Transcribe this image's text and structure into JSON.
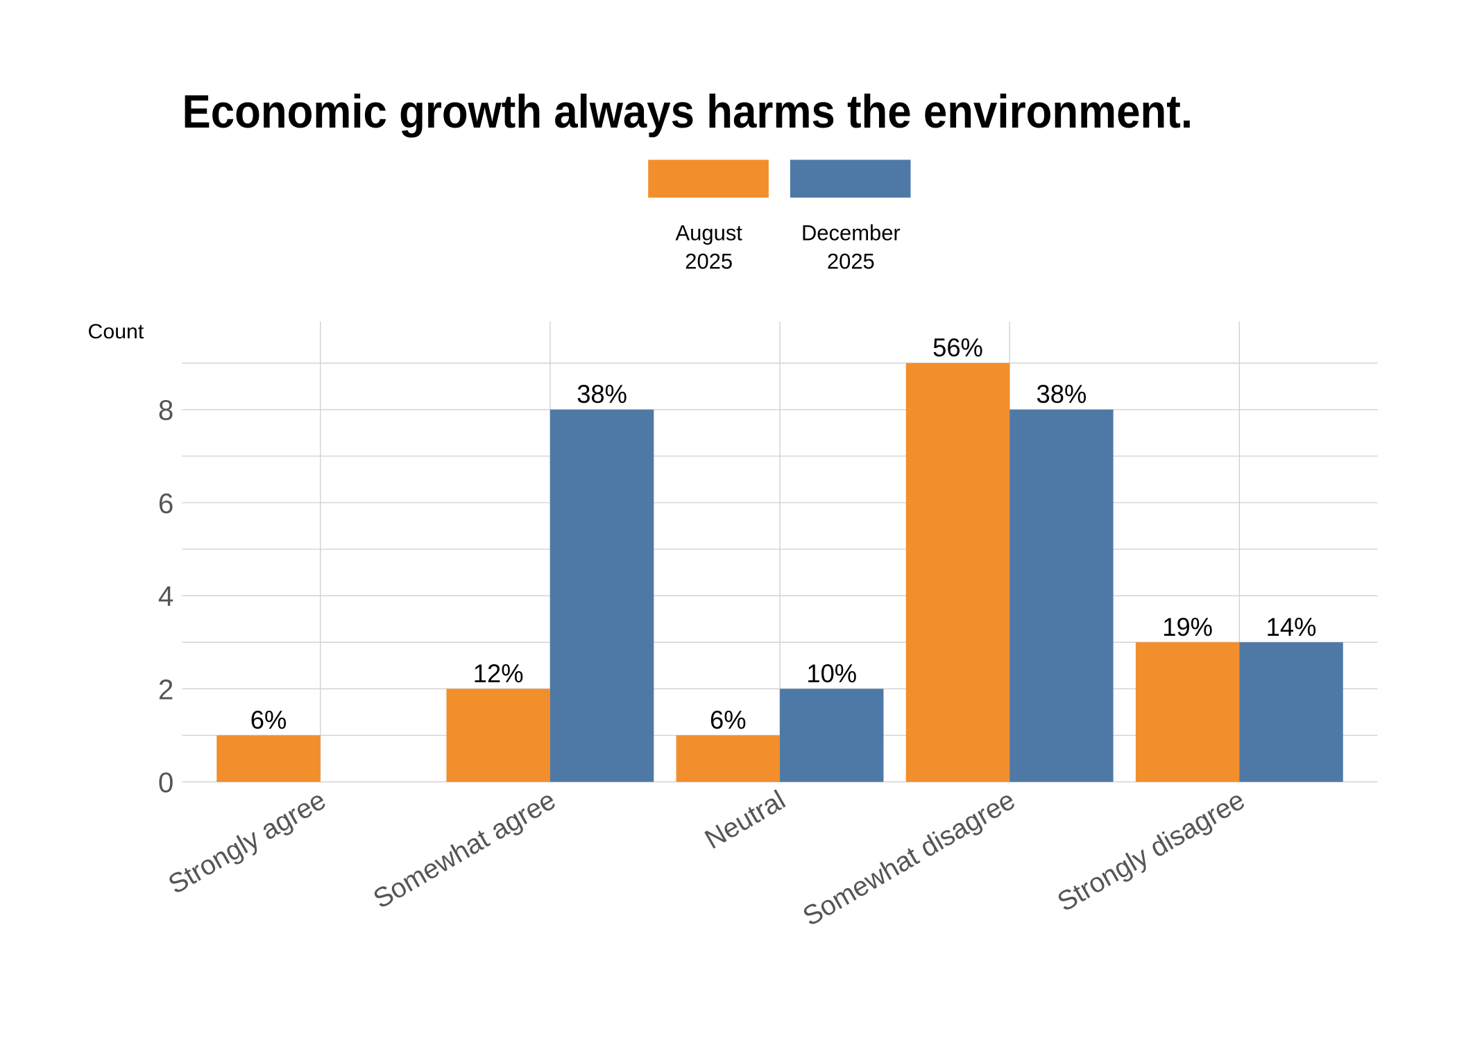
{
  "chart_data": {
    "type": "bar",
    "title": "Economic growth always harms the environment.",
    "ylabel": "Count",
    "xlabel": "",
    "categories": [
      "Strongly agree",
      "Somewhat agree",
      "Neutral",
      "Somewhat disagree",
      "Strongly disagree"
    ],
    "series": [
      {
        "name": "August\n2025",
        "name_lines": [
          "August",
          "2025"
        ],
        "color": "#F28E2B",
        "values": [
          1,
          2,
          1,
          9,
          3
        ],
        "labels": [
          "6%",
          "12%",
          "6%",
          "56%",
          "19%"
        ]
      },
      {
        "name": "December\n2025",
        "name_lines": [
          "December",
          "2025"
        ],
        "color": "#4E79A7",
        "values": [
          0,
          8,
          2,
          8,
          3
        ],
        "labels": [
          "",
          "38%",
          "10%",
          "38%",
          "14%"
        ]
      }
    ],
    "yticks": [
      0,
      2,
      4,
      6,
      8
    ],
    "ylim": [
      0,
      9.9
    ],
    "grid": true,
    "legend_position": "top"
  }
}
